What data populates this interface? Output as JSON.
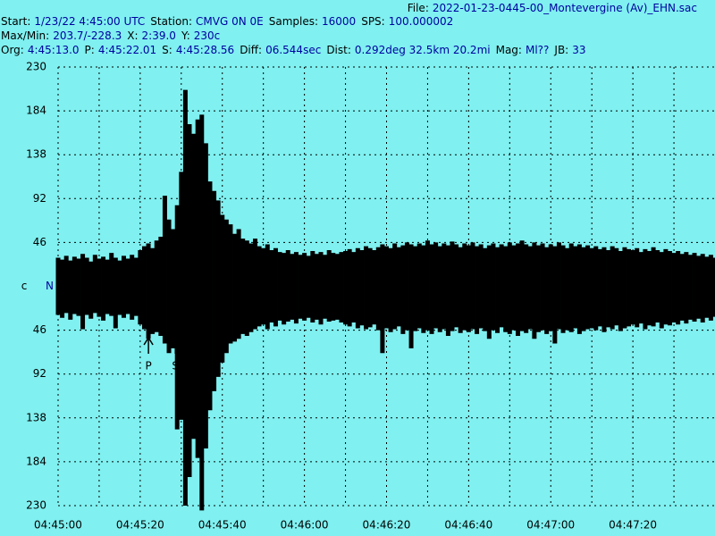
{
  "chart_data": {
    "type": "seismogram",
    "header": [
      [
        {
          "k": "File:",
          "v": "2022-01-23-0445-00_Montevergine (Av)_EHN.sac"
        }
      ],
      [
        {
          "k": "Start:",
          "v": "1/23/22  4:45:00 UTC"
        },
        {
          "k": "Station:",
          "v": "CMVG 0N 0E"
        },
        {
          "k": "Samples:",
          "v": "16000"
        },
        {
          "k": "SPS:",
          "v": "100.000002"
        }
      ],
      [
        {
          "k": "Max/Min:",
          "v": "203.7/-228.3"
        },
        {
          "k": "X:",
          "v": "2:39.0"
        },
        {
          "k": "Y:",
          "v": "230c"
        }
      ],
      [
        {
          "k": "Org:",
          "v": "4:45:13.0"
        },
        {
          "k": "P:",
          "v": "4:45:22.01"
        },
        {
          "k": "S:",
          "v": "4:45:28.56"
        },
        {
          "k": "Diff:",
          "v": "06.544sec"
        },
        {
          "k": "Dist:",
          "v": "0.292deg 32.5km 20.2mi"
        },
        {
          "k": "Mag:",
          "v": "Ml??"
        },
        {
          "k": "JB:",
          "v": "33"
        }
      ]
    ],
    "center_label": "c",
    "xlim": [
      0,
      160
    ],
    "xticks": [
      {
        "value": 0,
        "label": "04:45:00"
      },
      {
        "value": 20,
        "label": "04:45:20"
      },
      {
        "value": 40,
        "label": "04:45:40"
      },
      {
        "value": 60,
        "label": "04:46:00"
      },
      {
        "value": 80,
        "label": "04:46:20"
      },
      {
        "value": 100,
        "label": "04:46:40"
      },
      {
        "value": 120,
        "label": "04:47:00"
      },
      {
        "value": 140,
        "label": "04:47:20"
      }
    ],
    "minor_xticks": [
      10,
      30,
      50,
      70,
      90,
      110,
      130,
      150
    ],
    "ylim": [
      -230,
      230
    ],
    "yticks": [
      230,
      184,
      138,
      92,
      46,
      {
        "value": 0,
        "label": "N"
      },
      {
        "value": -46,
        "label": "46"
      },
      {
        "value": -92,
        "label": "92"
      },
      {
        "value": -138,
        "label": "138"
      },
      {
        "value": -184,
        "label": "184"
      },
      {
        "value": -230,
        "label": "230"
      }
    ],
    "grid": true,
    "color": "#000000",
    "background": "#80f0f0",
    "key_color": "#000000",
    "value_color": "#0000a0",
    "annotations": [
      {
        "label": "P",
        "x": 22.01
      },
      {
        "label": "S",
        "x": 28.56
      }
    ],
    "x": [
      0,
      1,
      2,
      3,
      4,
      5,
      6,
      7,
      8,
      9,
      10,
      11,
      12,
      13,
      14,
      15,
      16,
      17,
      18,
      19,
      20,
      21,
      22,
      23,
      24,
      25,
      26,
      27,
      28,
      29,
      30,
      31,
      32,
      33,
      34,
      35,
      36,
      37,
      38,
      39,
      40,
      41,
      42,
      43,
      44,
      45,
      46,
      47,
      48,
      49,
      50,
      51,
      52,
      53,
      54,
      55,
      56,
      57,
      58,
      59,
      60,
      61,
      62,
      63,
      64,
      65,
      66,
      67,
      68,
      69,
      70,
      71,
      72,
      73,
      74,
      75,
      76,
      77,
      78,
      79,
      80,
      81,
      82,
      83,
      84,
      85,
      86,
      87,
      88,
      89,
      90,
      91,
      92,
      93,
      94,
      95,
      96,
      97,
      98,
      99,
      100,
      101,
      102,
      103,
      104,
      105,
      106,
      107,
      108,
      109,
      110,
      111,
      112,
      113,
      114,
      115,
      116,
      117,
      118,
      119,
      120,
      121,
      122,
      123,
      124,
      125,
      126,
      127,
      128,
      129,
      130,
      131,
      132,
      133,
      134,
      135,
      136,
      137,
      138,
      139,
      140,
      141,
      142,
      143,
      144,
      145,
      146,
      147,
      148,
      149,
      150,
      151,
      152,
      153,
      154,
      155,
      156,
      157,
      158,
      159,
      160
    ],
    "max": [
      30,
      28,
      32,
      27,
      31,
      29,
      34,
      30,
      26,
      33,
      29,
      31,
      28,
      35,
      30,
      27,
      32,
      29,
      33,
      30,
      38,
      42,
      45,
      40,
      48,
      52,
      95,
      70,
      60,
      85,
      120,
      206,
      170,
      160,
      175,
      180,
      150,
      110,
      100,
      90,
      75,
      70,
      65,
      55,
      60,
      50,
      48,
      45,
      50,
      42,
      40,
      44,
      38,
      40,
      36,
      35,
      38,
      34,
      36,
      33,
      35,
      32,
      37,
      34,
      36,
      33,
      38,
      35,
      34,
      36,
      37,
      39,
      36,
      40,
      38,
      42,
      40,
      38,
      41,
      44,
      42,
      40,
      45,
      41,
      43,
      46,
      44,
      42,
      45,
      43,
      48,
      44,
      46,
      42,
      45,
      43,
      47,
      44,
      41,
      45,
      43,
      46,
      42,
      44,
      40,
      43,
      45,
      41,
      44,
      42,
      46,
      43,
      45,
      48,
      44,
      42,
      46,
      43,
      45,
      41,
      44,
      42,
      46,
      43,
      40,
      45,
      42,
      44,
      41,
      43,
      40,
      42,
      39,
      41,
      38,
      42,
      40,
      37,
      41,
      39,
      38,
      40,
      36,
      39,
      37,
      41,
      38,
      36,
      39,
      37,
      35,
      37,
      34,
      36,
      33,
      35,
      32,
      34,
      31,
      33,
      30
    ],
    "min": [
      -30,
      -33,
      -28,
      -35,
      -29,
      -31,
      -45,
      -30,
      -34,
      -28,
      -32,
      -36,
      -29,
      -31,
      -44,
      -30,
      -33,
      -29,
      -35,
      -31,
      -40,
      -45,
      -55,
      -50,
      -48,
      -52,
      -60,
      -70,
      -65,
      -150,
      -140,
      -230,
      -200,
      -160,
      -180,
      -235,
      -170,
      -130,
      -110,
      -95,
      -80,
      -70,
      -60,
      -58,
      -55,
      -50,
      -52,
      -48,
      -45,
      -42,
      -40,
      -45,
      -38,
      -42,
      -36,
      -40,
      -37,
      -35,
      -39,
      -34,
      -36,
      -33,
      -38,
      -35,
      -40,
      -34,
      -37,
      -36,
      -35,
      -38,
      -40,
      -42,
      -38,
      -44,
      -41,
      -45,
      -43,
      -40,
      -46,
      -70,
      -44,
      -48,
      -45,
      -42,
      -50,
      -46,
      -65,
      -47,
      -44,
      -49,
      -46,
      -50,
      -44,
      -48,
      -45,
      -52,
      -47,
      -43,
      -49,
      -46,
      -48,
      -45,
      -50,
      -44,
      -47,
      -55,
      -46,
      -49,
      -43,
      -48,
      -50,
      -46,
      -52,
      -47,
      -49,
      -45,
      -55,
      -48,
      -46,
      -50,
      -47,
      -60,
      -45,
      -49,
      -46,
      -48,
      -44,
      -50,
      -47,
      -45,
      -44,
      -46,
      -42,
      -48,
      -43,
      -45,
      -41,
      -47,
      -44,
      -42,
      -40,
      -43,
      -39,
      -45,
      -41,
      -42,
      -38,
      -44,
      -40,
      -41,
      -38,
      -40,
      -36,
      -39,
      -35,
      -37,
      -34,
      -38,
      -33,
      -36,
      -32
    ]
  }
}
